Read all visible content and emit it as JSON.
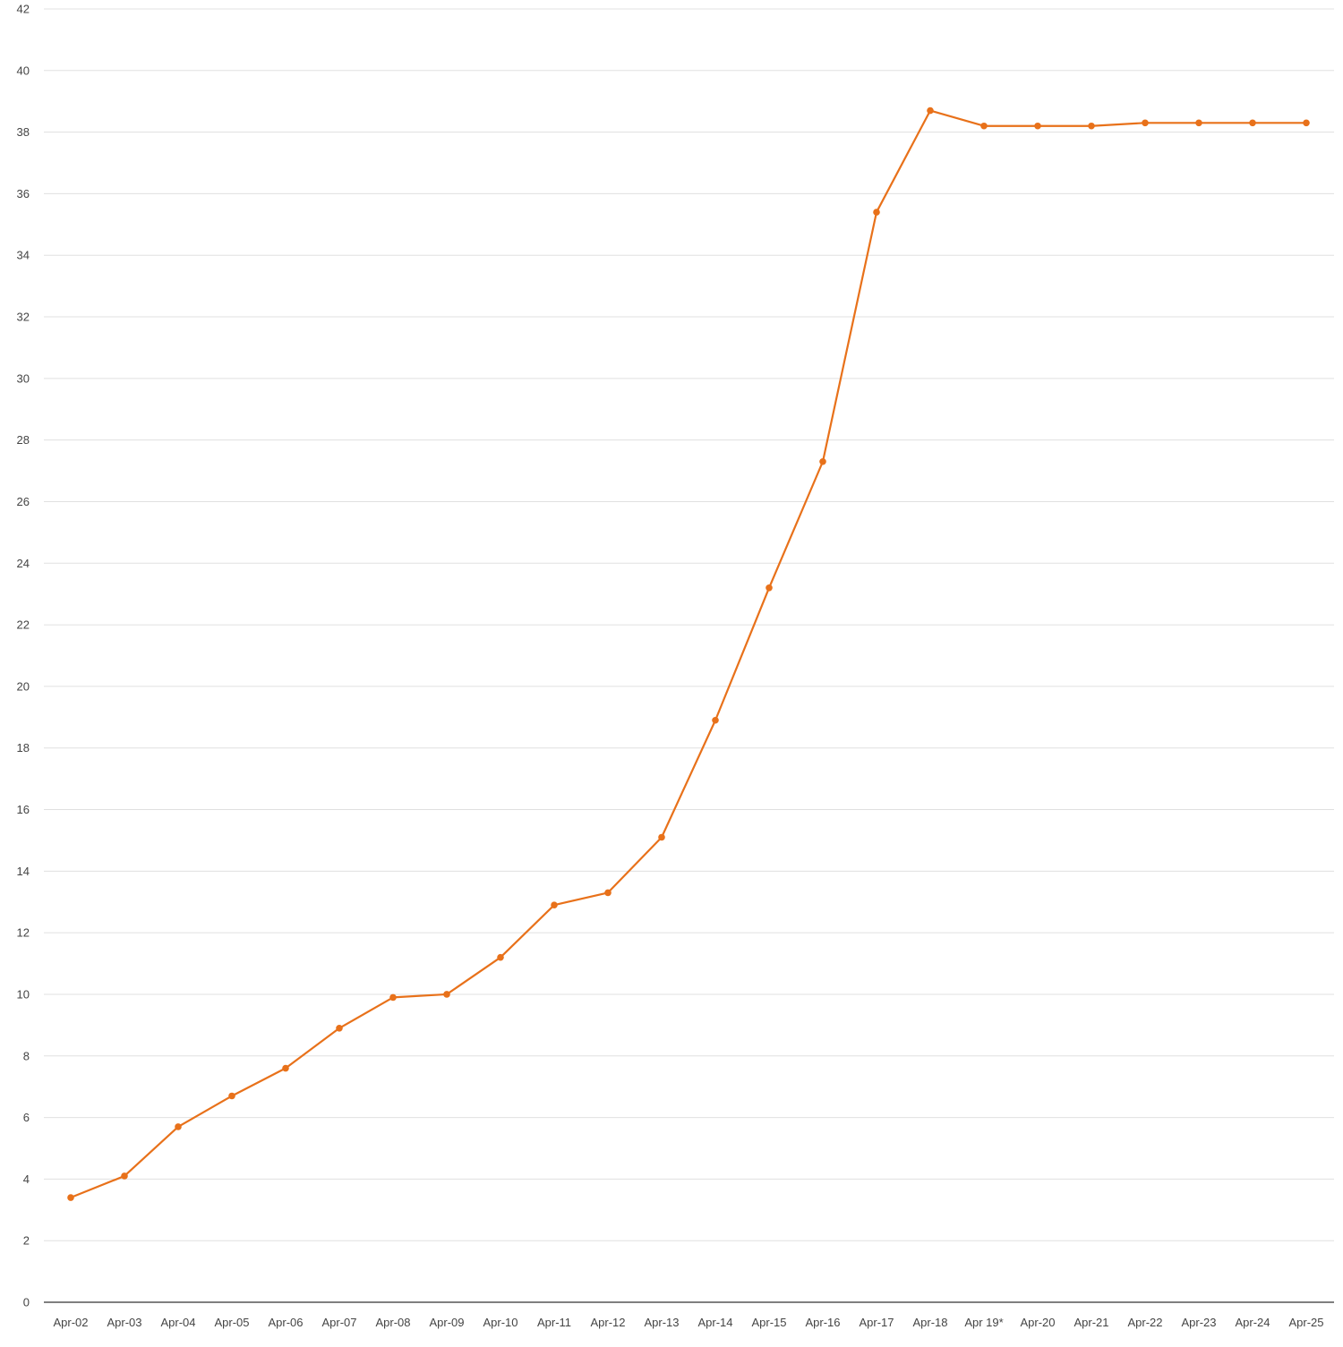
{
  "chart_data": {
    "type": "line",
    "title": "",
    "xlabel": "",
    "ylabel": "",
    "categories": [
      "Apr-02",
      "Apr-03",
      "Apr-04",
      "Apr-05",
      "Apr-06",
      "Apr-07",
      "Apr-08",
      "Apr-09",
      "Apr-10",
      "Apr-11",
      "Apr-12",
      "Apr-13",
      "Apr-14",
      "Apr-15",
      "Apr-16",
      "Apr-17",
      "Apr-18",
      "Apr 19*",
      "Apr-20",
      "Apr-21",
      "Apr-22",
      "Apr-23",
      "Apr-24",
      "Apr-25"
    ],
    "series": [
      {
        "values": [
          3.4,
          4.1,
          5.7,
          6.7,
          7.6,
          8.9,
          9.9,
          10.0,
          11.2,
          12.9,
          13.3,
          15.1,
          18.9,
          23.2,
          27.3,
          35.4,
          38.7,
          38.2,
          38.2,
          38.2,
          38.3,
          38.3,
          38.3,
          38.3
        ]
      }
    ],
    "ylim": [
      0,
      42
    ],
    "yticks": [
      0,
      2,
      4,
      6,
      8,
      10,
      12,
      14,
      16,
      18,
      20,
      22,
      24,
      26,
      28,
      30,
      32,
      34,
      36,
      38,
      40,
      42
    ],
    "grid": true,
    "legend": "none",
    "colors": {
      "line": "#e8711a",
      "grid": "#e0e0e0",
      "axis": "#333333",
      "label": "#444444"
    }
  }
}
